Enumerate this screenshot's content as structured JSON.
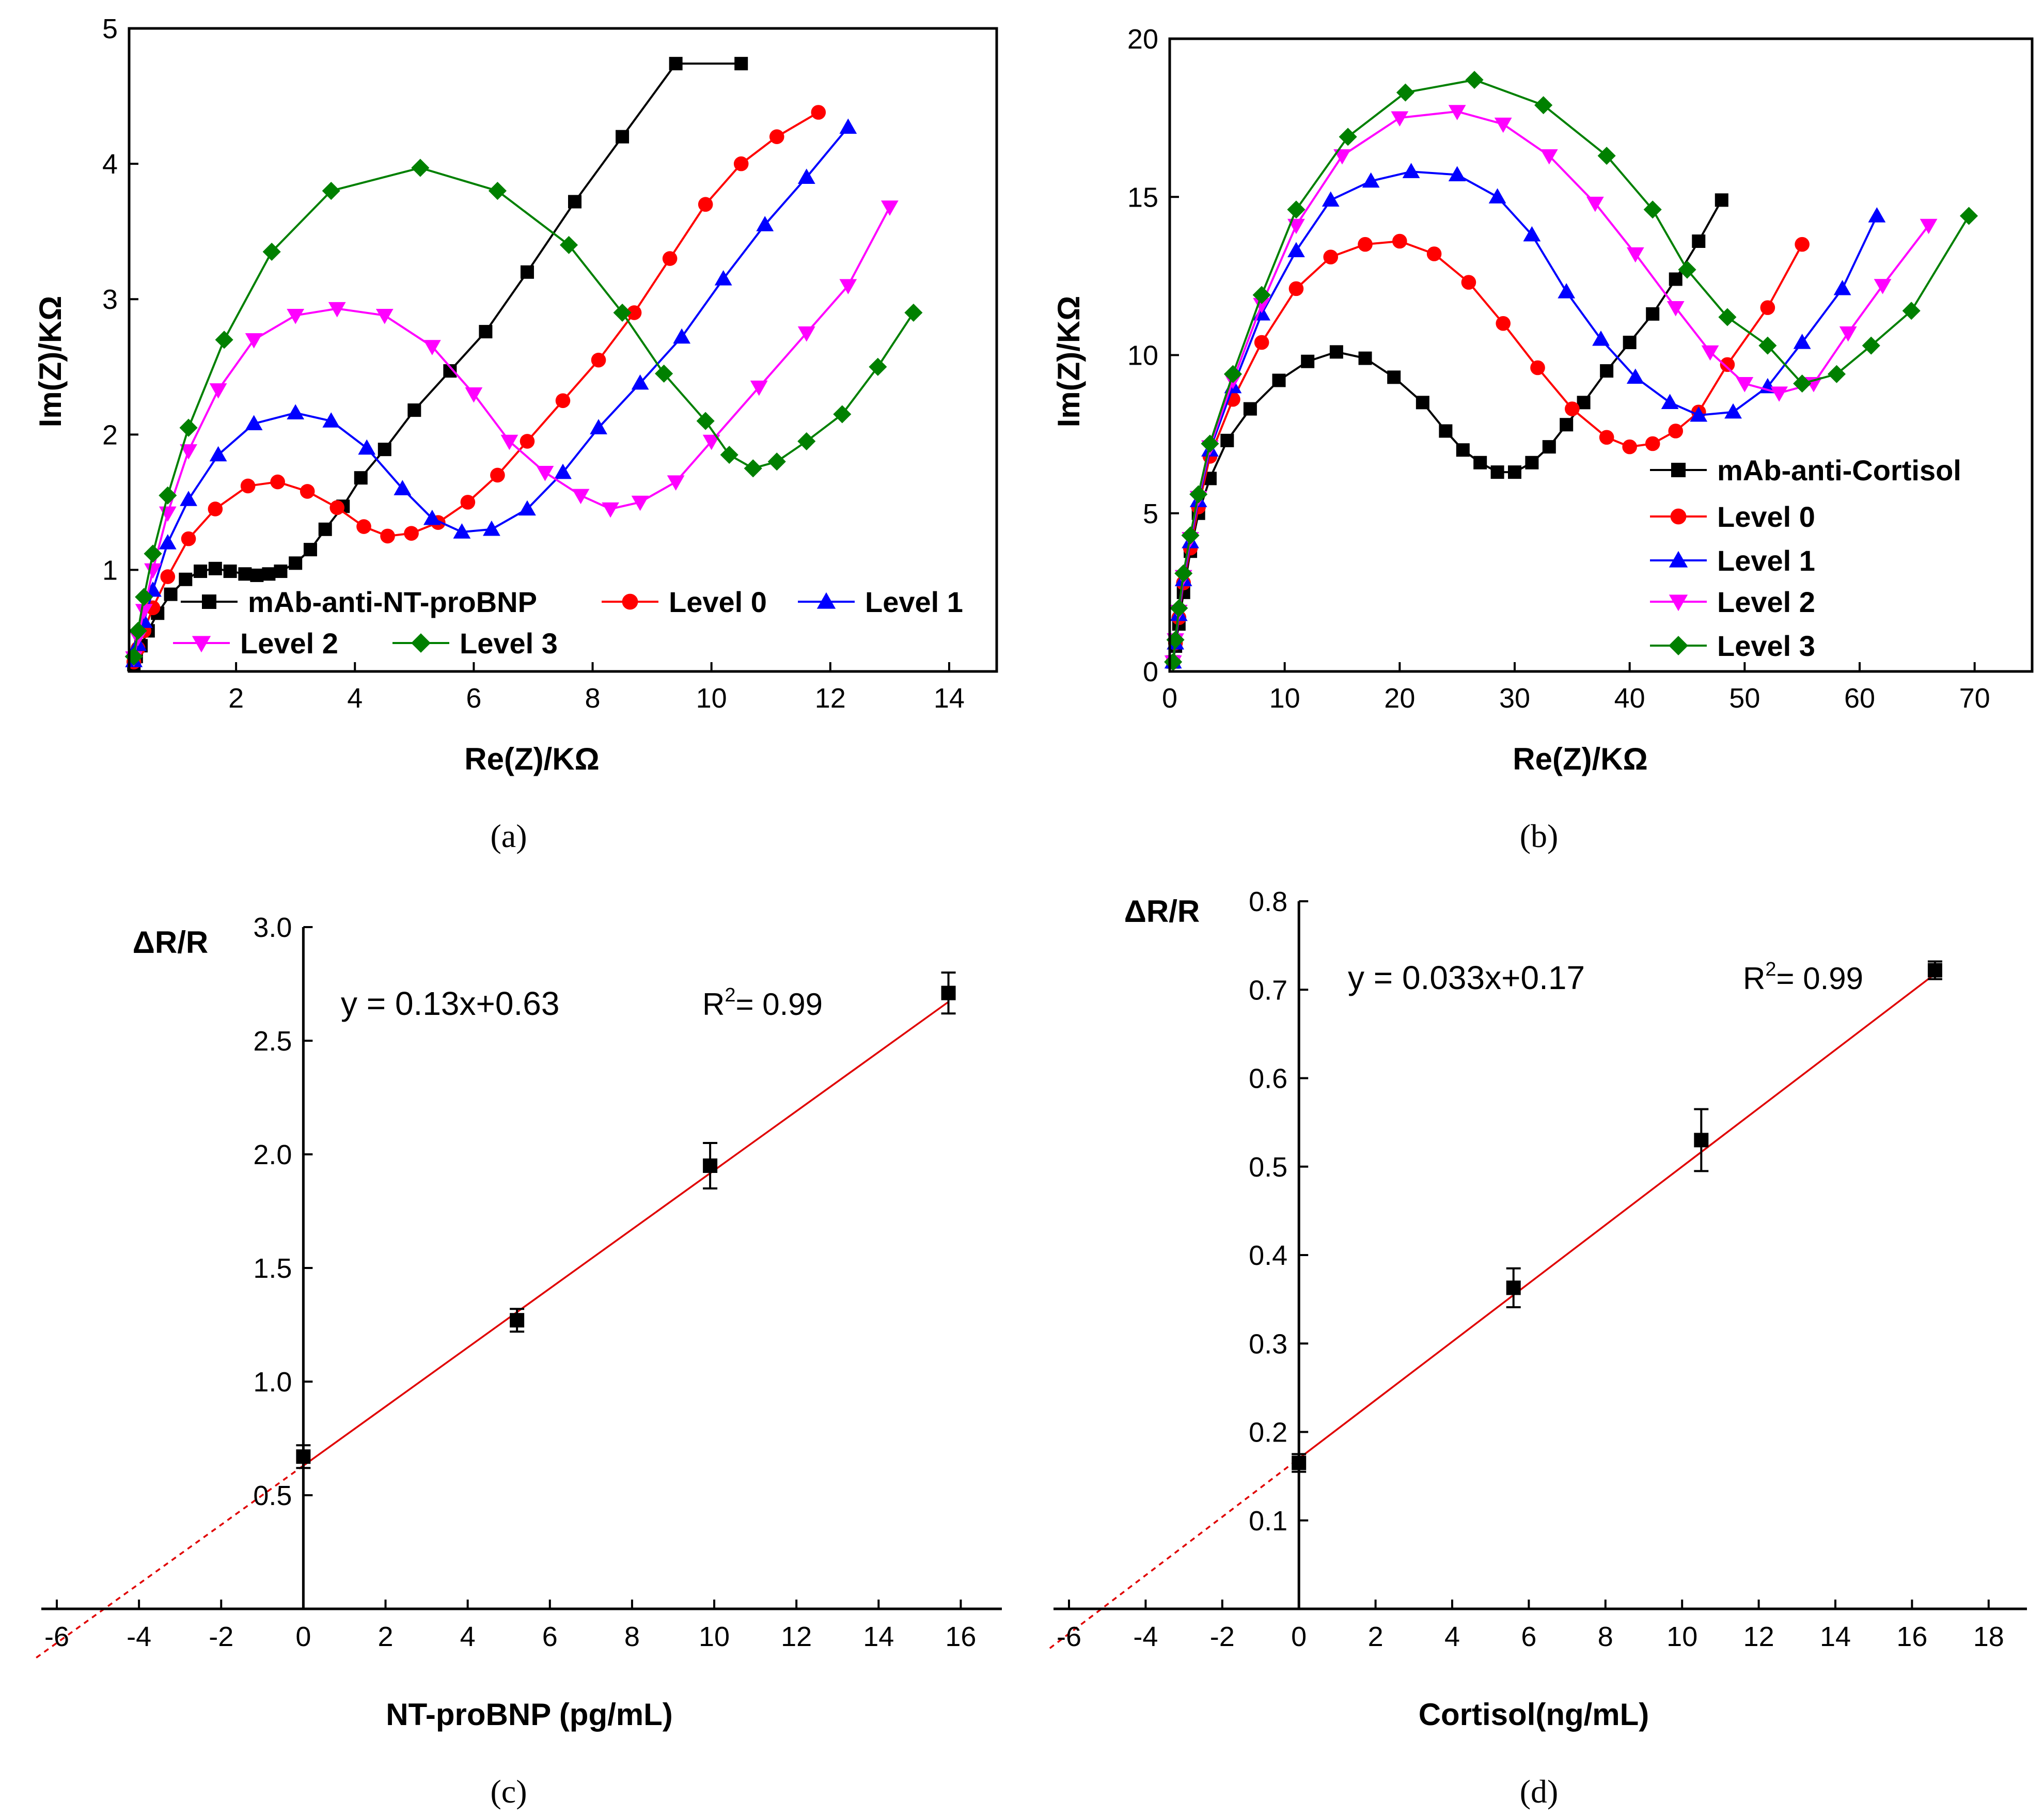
{
  "figure": {
    "panel_labels": [
      "(a)",
      "(b)",
      "(c)",
      "(d)"
    ]
  },
  "chart_data": [
    {
      "id": "a",
      "type": "line",
      "xlabel": "Re(Z)/KΩ",
      "ylabel": "Im(Z)/KΩ",
      "xlim": [
        0.2,
        14.8
      ],
      "ylim": [
        0.25,
        5.0
      ],
      "xticks": [
        2,
        4,
        6,
        8,
        10,
        12,
        14
      ],
      "yticks": [
        1,
        2,
        3,
        4,
        5
      ],
      "legend_position": "bottom-left",
      "series": [
        {
          "name": "mAb-anti-NT-proBNP",
          "color": "#000000",
          "marker": "square",
          "x": [
            0.28,
            0.32,
            0.4,
            0.52,
            0.68,
            0.9,
            1.15,
            1.4,
            1.65,
            1.9,
            2.15,
            2.35,
            2.55,
            2.75,
            3.0,
            3.25,
            3.5,
            3.8,
            4.1,
            4.5,
            5.0,
            5.6,
            6.2,
            6.9,
            7.7,
            8.5,
            9.4,
            10.5
          ],
          "y": [
            0.3,
            0.36,
            0.44,
            0.55,
            0.68,
            0.82,
            0.93,
            0.99,
            1.01,
            0.99,
            0.97,
            0.96,
            0.97,
            0.99,
            1.05,
            1.15,
            1.3,
            1.47,
            1.68,
            1.89,
            2.18,
            2.47,
            2.76,
            3.2,
            3.72,
            4.2,
            4.74,
            4.74
          ]
        },
        {
          "name": "Level 0",
          "color": "#ff0000",
          "marker": "circle",
          "x": [
            0.28,
            0.35,
            0.45,
            0.6,
            0.85,
            1.2,
            1.65,
            2.2,
            2.7,
            3.2,
            3.7,
            4.15,
            4.55,
            4.95,
            5.4,
            5.9,
            6.4,
            6.9,
            7.5,
            8.1,
            8.7,
            9.3,
            9.9,
            10.5,
            11.1,
            11.8
          ],
          "y": [
            0.32,
            0.42,
            0.55,
            0.72,
            0.95,
            1.23,
            1.45,
            1.62,
            1.65,
            1.58,
            1.46,
            1.32,
            1.25,
            1.27,
            1.35,
            1.5,
            1.7,
            1.95,
            2.25,
            2.55,
            2.9,
            3.3,
            3.7,
            4.0,
            4.2,
            4.38
          ]
        },
        {
          "name": "Level 1",
          "color": "#0000ff",
          "marker": "triangle-up",
          "x": [
            0.28,
            0.35,
            0.45,
            0.6,
            0.85,
            1.2,
            1.7,
            2.3,
            3.0,
            3.6,
            4.2,
            4.8,
            5.3,
            5.8,
            6.3,
            6.9,
            7.5,
            8.1,
            8.8,
            9.5,
            10.2,
            10.9,
            11.6,
            12.3
          ],
          "y": [
            0.33,
            0.45,
            0.62,
            0.85,
            1.2,
            1.52,
            1.85,
            2.08,
            2.16,
            2.1,
            1.9,
            1.6,
            1.38,
            1.28,
            1.3,
            1.45,
            1.72,
            2.05,
            2.38,
            2.72,
            3.15,
            3.55,
            3.9,
            4.27
          ]
        },
        {
          "name": "Level 2",
          "color": "#ff00ff",
          "marker": "triangle-down",
          "x": [
            0.28,
            0.35,
            0.45,
            0.6,
            0.85,
            1.2,
            1.7,
            2.3,
            3.0,
            3.7,
            4.5,
            5.3,
            6.0,
            6.6,
            7.2,
            7.8,
            8.3,
            8.8,
            9.4,
            10.0,
            10.8,
            11.6,
            12.3,
            13.0
          ],
          "y": [
            0.35,
            0.5,
            0.7,
            1.0,
            1.42,
            1.88,
            2.33,
            2.7,
            2.88,
            2.93,
            2.88,
            2.65,
            2.3,
            1.95,
            1.72,
            1.55,
            1.45,
            1.5,
            1.65,
            1.95,
            2.35,
            2.75,
            3.1,
            3.68
          ]
        },
        {
          "name": "Level 3",
          "color": "#008000",
          "marker": "diamond",
          "x": [
            0.28,
            0.35,
            0.45,
            0.6,
            0.85,
            1.2,
            1.8,
            2.6,
            3.6,
            5.1,
            6.4,
            7.6,
            8.5,
            9.2,
            9.9,
            10.3,
            10.7,
            11.1,
            11.6,
            12.2,
            12.8,
            13.4
          ],
          "y": [
            0.36,
            0.55,
            0.8,
            1.12,
            1.55,
            2.05,
            2.7,
            3.35,
            3.8,
            3.97,
            3.8,
            3.4,
            2.9,
            2.45,
            2.1,
            1.85,
            1.75,
            1.8,
            1.95,
            2.15,
            2.5,
            2.9
          ]
        }
      ]
    },
    {
      "id": "b",
      "type": "line",
      "xlabel": "Re(Z)/KΩ",
      "ylabel": "Im(Z)/KΩ",
      "xlim": [
        0,
        75
      ],
      "ylim": [
        0,
        20
      ],
      "xticks": [
        0,
        10,
        20,
        30,
        40,
        50,
        60,
        70
      ],
      "yticks": [
        0,
        5,
        10,
        15,
        20
      ],
      "legend_position": "bottom-right",
      "series": [
        {
          "name": "mAb-anti-Cortisol",
          "color": "#000000",
          "marker": "square",
          "x": [
            0.3,
            0.5,
            0.8,
            1.2,
            1.8,
            2.5,
            3.5,
            5,
            7,
            9.5,
            12,
            14.5,
            17,
            19.5,
            22,
            24,
            25.5,
            27,
            28.5,
            30,
            31.5,
            33,
            34.5,
            36,
            38,
            40,
            42,
            44,
            46,
            48
          ],
          "y": [
            0.3,
            0.8,
            1.5,
            2.5,
            3.8,
            5.0,
            6.1,
            7.3,
            8.3,
            9.2,
            9.8,
            10.1,
            9.9,
            9.3,
            8.5,
            7.6,
            7.0,
            6.6,
            6.3,
            6.3,
            6.6,
            7.1,
            7.8,
            8.5,
            9.5,
            10.4,
            11.3,
            12.4,
            13.6,
            14.9
          ]
        },
        {
          "name": "Level 0",
          "color": "#ff0000",
          "marker": "circle",
          "x": [
            0.3,
            0.5,
            0.8,
            1.2,
            1.8,
            2.5,
            3.5,
            5.5,
            8,
            11,
            14,
            17,
            20,
            23,
            26,
            29,
            32,
            35,
            38,
            40,
            42,
            44,
            46,
            48.5,
            52,
            55
          ],
          "y": [
            0.3,
            0.9,
            1.7,
            2.8,
            3.9,
            5.2,
            6.8,
            8.6,
            10.4,
            12.1,
            13.1,
            13.5,
            13.6,
            13.2,
            12.3,
            11.0,
            9.6,
            8.3,
            7.4,
            7.1,
            7.2,
            7.6,
            8.2,
            9.7,
            11.5,
            13.5
          ]
        },
        {
          "name": "Level 1",
          "color": "#0000ff",
          "marker": "triangle-up",
          "x": [
            0.3,
            0.5,
            0.8,
            1.2,
            1.8,
            2.5,
            3.5,
            5.5,
            8,
            11,
            14,
            17.5,
            21,
            25,
            28.5,
            31.5,
            34.5,
            37.5,
            40.5,
            43.5,
            46,
            49,
            52,
            55,
            58.5,
            61.5
          ],
          "y": [
            0.3,
            0.9,
            1.8,
            2.9,
            4.1,
            5.4,
            7.0,
            9.0,
            11.3,
            13.3,
            14.9,
            15.5,
            15.8,
            15.7,
            15.0,
            13.8,
            12.0,
            10.5,
            9.3,
            8.5,
            8.1,
            8.2,
            9.0,
            10.4,
            12.1,
            14.4
          ]
        },
        {
          "name": "Level 2",
          "color": "#ff00ff",
          "marker": "triangle-down",
          "x": [
            0.3,
            0.5,
            0.8,
            1.2,
            1.8,
            2.5,
            3.5,
            5.5,
            8,
            11,
            15,
            20,
            25,
            29,
            33,
            37,
            40.5,
            44,
            47,
            50,
            53,
            56,
            59,
            62,
            66
          ],
          "y": [
            0.3,
            1.0,
            1.9,
            3.0,
            4.2,
            5.5,
            7.1,
            9.2,
            11.6,
            14.1,
            16.3,
            17.5,
            17.7,
            17.3,
            16.3,
            14.8,
            13.2,
            11.5,
            10.1,
            9.1,
            8.8,
            9.1,
            10.7,
            12.2,
            14.1
          ]
        },
        {
          "name": "Level 3",
          "color": "#008000",
          "marker": "diamond",
          "x": [
            0.3,
            0.5,
            0.8,
            1.2,
            1.8,
            2.5,
            3.5,
            5.5,
            8,
            11,
            15.5,
            20.5,
            26.5,
            32.5,
            38,
            42,
            45,
            48.5,
            52,
            55,
            58,
            61,
            64.5,
            69.5
          ],
          "y": [
            0.3,
            1.0,
            2.0,
            3.1,
            4.3,
            5.6,
            7.2,
            9.4,
            11.9,
            14.6,
            16.9,
            18.3,
            18.7,
            17.9,
            16.3,
            14.6,
            12.7,
            11.2,
            10.3,
            9.1,
            9.4,
            10.3,
            11.4,
            14.4
          ]
        }
      ]
    },
    {
      "id": "c",
      "type": "scatter",
      "xlabel": "NT-proBNP (pg/mL)",
      "ylabel": "ΔR/R",
      "xlim": [
        -6,
        17
      ],
      "ylim": [
        0,
        3.0
      ],
      "xticks": [
        -6,
        -4,
        -2,
        0,
        2,
        4,
        6,
        8,
        10,
        12,
        14,
        16
      ],
      "yticks": [
        0.5,
        1.0,
        1.5,
        2.0,
        2.5,
        3.0
      ],
      "ytick_labels": [
        "0.5",
        "1.0",
        "1.5",
        "2.0",
        "2.5",
        "3.0"
      ],
      "points": {
        "x": [
          0,
          5.2,
          9.9,
          15.7
        ],
        "y": [
          0.67,
          1.27,
          1.95,
          2.71
        ],
        "err": [
          0.05,
          0.05,
          0.1,
          0.09
        ]
      },
      "fit": {
        "slope": 0.13,
        "intercept": 0.63,
        "x_start": -6.5,
        "x_solid_start": 0,
        "x_end": 15.7
      },
      "equation": "y = 0.13x+0.63",
      "r2_label": "R",
      "r2_sup": "2",
      "r2_value": "= 0.99"
    },
    {
      "id": "d",
      "type": "scatter",
      "xlabel": "Cortisol(ng/mL)",
      "ylabel": "ΔR/R",
      "xlim": [
        -6,
        19
      ],
      "ylim": [
        0,
        0.8
      ],
      "xticks": [
        -6,
        -4,
        -2,
        0,
        2,
        4,
        6,
        8,
        10,
        12,
        14,
        16,
        18
      ],
      "yticks": [
        0.1,
        0.2,
        0.3,
        0.4,
        0.5,
        0.6,
        0.7,
        0.8
      ],
      "ytick_labels": [
        "0.1",
        "0.2",
        "0.3",
        "0.4",
        "0.5",
        "0.6",
        "0.7",
        "0.8"
      ],
      "points": {
        "x": [
          0,
          5.6,
          10.5,
          16.6
        ],
        "y": [
          0.165,
          0.363,
          0.53,
          0.722
        ],
        "err": [
          0.01,
          0.022,
          0.035,
          0.01
        ]
      },
      "fit": {
        "slope": 0.033,
        "intercept": 0.17,
        "x_start": -6.5,
        "x_solid_start": 0,
        "x_end": 16.6
      },
      "equation": "y = 0.033x+0.17",
      "r2_label": "R",
      "r2_sup": "2",
      "r2_value": "= 0.99"
    }
  ]
}
